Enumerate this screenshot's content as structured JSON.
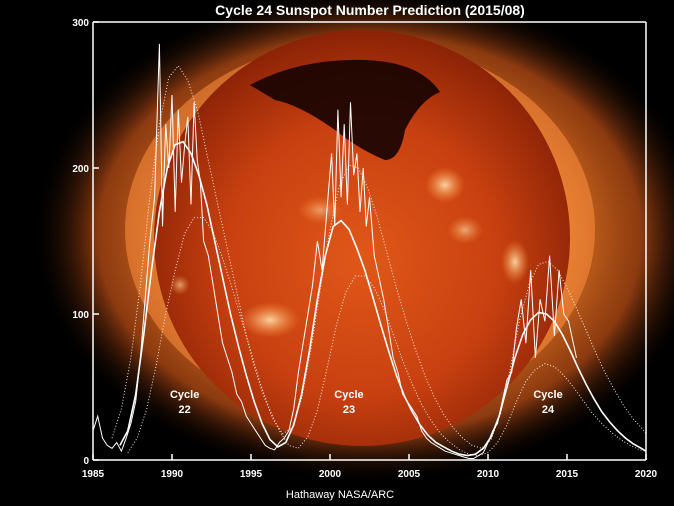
{
  "chart_data": {
    "type": "line",
    "title": "Cycle 24 Sunspot Number Prediction (2015/08)",
    "xlabel": "",
    "ylabel": "",
    "xlim": [
      1985,
      2020
    ],
    "ylim": [
      0,
      300
    ],
    "x_ticks": [
      "1985",
      "1990",
      "1995",
      "2000",
      "2005",
      "2010",
      "2015",
      "2020"
    ],
    "y_ticks": [
      "0",
      "100",
      "200",
      "300"
    ],
    "grid": false,
    "background_image": "soft x-ray image of the Sun (orange corona on black)",
    "colors": {
      "background": "#000000",
      "lines": "#ffffff",
      "sun_core": "#c63a08",
      "corona": "#ff8a2a"
    },
    "cycle_labels": [
      {
        "line1": "Cycle",
        "line2": "22",
        "x": 1990.8,
        "y": 30
      },
      {
        "line1": "Cycle",
        "line2": "23",
        "x": 2001.2,
        "y": 30
      },
      {
        "line1": "Cycle",
        "line2": "24",
        "x": 2013.8,
        "y": 30
      }
    ],
    "credit": "Hathaway  NASA/ARC",
    "series": [
      {
        "style": "noisy-solid",
        "x": [
          1985.0,
          1985.3,
          1985.6,
          1985.9,
          1986.2,
          1986.5,
          1986.8,
          1987.1,
          1987.4,
          1987.7,
          1988.0,
          1988.3,
          1988.6,
          1988.9,
          1989.2,
          1989.4,
          1989.6,
          1989.8,
          1990.0,
          1990.2,
          1990.4,
          1990.6,
          1990.8,
          1991.0,
          1991.2,
          1991.4,
          1991.6,
          1991.8,
          1992.0,
          1992.3,
          1992.6,
          1992.9,
          1993.2,
          1993.5,
          1993.8,
          1994.1,
          1994.4,
          1994.7,
          1995.0,
          1995.3,
          1995.6,
          1995.9,
          1996.2,
          1996.5,
          1996.8,
          1997.1,
          1997.4,
          1997.7,
          1998.0,
          1998.3,
          1998.6,
          1998.9,
          1999.2,
          1999.5,
          1999.8,
          2000.1,
          2000.3,
          2000.5,
          2000.7,
          2000.9,
          2001.1,
          2001.3,
          2001.5,
          2001.7,
          2001.9,
          2002.1,
          2002.3,
          2002.5,
          2002.8,
          2003.1,
          2003.4,
          2003.7,
          2004.0,
          2004.3,
          2004.6,
          2004.9,
          2005.2,
          2005.5,
          2005.8,
          2006.1,
          2006.4,
          2006.7,
          2007.0,
          2007.3,
          2007.6,
          2007.9,
          2008.2,
          2008.5,
          2008.8,
          2009.1,
          2009.4,
          2009.7,
          2010.0,
          2010.3,
          2010.6,
          2010.9,
          2011.2,
          2011.5,
          2011.8,
          2012.1,
          2012.4,
          2012.7,
          2013.0,
          2013.3,
          2013.6,
          2013.9,
          2014.2,
          2014.5,
          2014.8,
          2015.1,
          2015.4,
          2015.6
        ],
        "values": [
          20,
          30,
          15,
          10,
          8,
          12,
          6,
          15,
          25,
          40,
          70,
          110,
          150,
          180,
          285,
          160,
          230,
          200,
          250,
          170,
          240,
          190,
          215,
          235,
          175,
          245,
          205,
          190,
          150,
          140,
          120,
          100,
          80,
          70,
          60,
          45,
          40,
          30,
          25,
          20,
          15,
          10,
          8,
          7,
          12,
          15,
          20,
          35,
          60,
          80,
          100,
          120,
          150,
          130,
          170,
          210,
          160,
          240,
          180,
          230,
          175,
          245,
          195,
          210,
          170,
          200,
          160,
          180,
          140,
          125,
          110,
          90,
          70,
          60,
          45,
          40,
          35,
          30,
          20,
          15,
          12,
          10,
          8,
          6,
          5,
          4,
          3,
          2,
          1,
          1,
          3,
          5,
          12,
          20,
          25,
          40,
          55,
          60,
          90,
          110,
          80,
          130,
          70,
          110,
          95,
          140,
          85,
          130,
          100,
          95,
          80,
          70
        ]
      },
      {
        "style": "smooth-solid",
        "x": [
          1986.7,
          1987.2,
          1987.7,
          1988.2,
          1988.7,
          1989.2,
          1989.7,
          1990.2,
          1990.7,
          1991.2,
          1991.7,
          1992.2,
          1992.7,
          1993.2,
          1993.7,
          1994.2,
          1994.7,
          1995.2,
          1995.7,
          1996.2,
          1996.7,
          1997.2,
          1997.7,
          1998.2,
          1998.7,
          1999.2,
          1999.7,
          2000.2,
          2000.7,
          2001.2,
          2001.7,
          2002.2,
          2002.7,
          2003.2,
          2003.7,
          2004.2,
          2004.7,
          2005.2,
          2005.7,
          2006.2,
          2006.7,
          2007.2,
          2007.7,
          2008.2,
          2008.7,
          2009.2,
          2009.7,
          2010.2,
          2010.7,
          2011.2,
          2011.7,
          2012.2,
          2012.7,
          2013.2,
          2013.7,
          2014.2,
          2014.7,
          2015.2,
          2015.7,
          2016.2,
          2016.7,
          2017.2,
          2017.7,
          2018.2,
          2018.7,
          2019.2,
          2019.7,
          2020.0
        ],
        "values": [
          10,
          20,
          45,
          85,
          130,
          170,
          200,
          216,
          218,
          210,
          195,
          175,
          150,
          125,
          100,
          78,
          58,
          40,
          25,
          14,
          9,
          12,
          24,
          45,
          75,
          110,
          140,
          160,
          164,
          158,
          145,
          130,
          112,
          93,
          75,
          58,
          44,
          33,
          24,
          17,
          12,
          9,
          6,
          4,
          3,
          4,
          8,
          16,
          30,
          50,
          70,
          86,
          96,
          101,
          100,
          95,
          86,
          75,
          63,
          52,
          42,
          33,
          26,
          20,
          15,
          11,
          8,
          6
        ]
      },
      {
        "style": "dotted",
        "x": [
          1986.2,
          1986.8,
          1987.4,
          1988.0,
          1988.6,
          1989.2,
          1989.8,
          1990.4,
          1991.0,
          1991.6,
          1992.2,
          1992.8,
          1993.4,
          1994.0,
          1994.6,
          1995.2,
          1995.8,
          1996.4,
          1997.0,
          1997.6,
          1998.2,
          1998.8,
          1999.4,
          2000.0,
          2000.6,
          2001.2,
          2001.8,
          2002.4,
          2003.0,
          2003.6,
          2004.2,
          2004.8,
          2005.4,
          2006.0,
          2006.6,
          2007.2,
          2007.8,
          2008.4,
          2009.0,
          2009.6,
          2010.2,
          2010.8,
          2011.4,
          2012.0,
          2012.6,
          2013.2,
          2013.8,
          2014.4,
          2015.0,
          2015.6,
          2016.2,
          2016.8,
          2017.4,
          2018.0,
          2018.6,
          2019.2,
          2019.8,
          2020.0
        ],
        "values": [
          15,
          35,
          70,
          120,
          180,
          230,
          262,
          270,
          260,
          240,
          210,
          180,
          150,
          120,
          90,
          64,
          44,
          28,
          18,
          22,
          42,
          76,
          118,
          158,
          188,
          202,
          200,
          186,
          166,
          142,
          118,
          96,
          76,
          58,
          43,
          31,
          22,
          15,
          10,
          8,
          14,
          32,
          62,
          96,
          120,
          134,
          136,
          130,
          118,
          104,
          89,
          74,
          60,
          48,
          37,
          28,
          21,
          18
        ]
      },
      {
        "style": "dotted",
        "x": [
          1987.2,
          1987.8,
          1988.4,
          1989.0,
          1989.6,
          1990.2,
          1990.8,
          1991.4,
          1992.0,
          1992.6,
          1993.2,
          1993.8,
          1994.4,
          1995.0,
          1995.6,
          1996.2,
          1996.8,
          1997.4,
          1998.0,
          1998.6,
          1999.2,
          1999.8,
          2000.4,
          2001.0,
          2001.6,
          2002.2,
          2002.8,
          2003.4,
          2004.0,
          2004.6,
          2005.2,
          2005.8,
          2006.4,
          2007.0,
          2007.6,
          2008.2,
          2008.8,
          2009.4,
          2010.0,
          2010.6,
          2011.2,
          2011.8,
          2012.4,
          2013.0,
          2013.6,
          2014.2,
          2014.8,
          2015.4,
          2016.0,
          2016.6,
          2017.2,
          2017.8,
          2018.4,
          2019.0,
          2019.6,
          2020.0
        ],
        "values": [
          5,
          15,
          35,
          65,
          100,
          130,
          155,
          166,
          166,
          156,
          138,
          118,
          96,
          74,
          52,
          34,
          20,
          10,
          8,
          16,
          34,
          62,
          92,
          115,
          126,
          126,
          118,
          104,
          86,
          68,
          52,
          38,
          27,
          18,
          12,
          7,
          4,
          3,
          5,
          12,
          24,
          40,
          54,
          62,
          66,
          64,
          58,
          50,
          41,
          32,
          25,
          19,
          14,
          10,
          7,
          6
        ]
      }
    ]
  }
}
